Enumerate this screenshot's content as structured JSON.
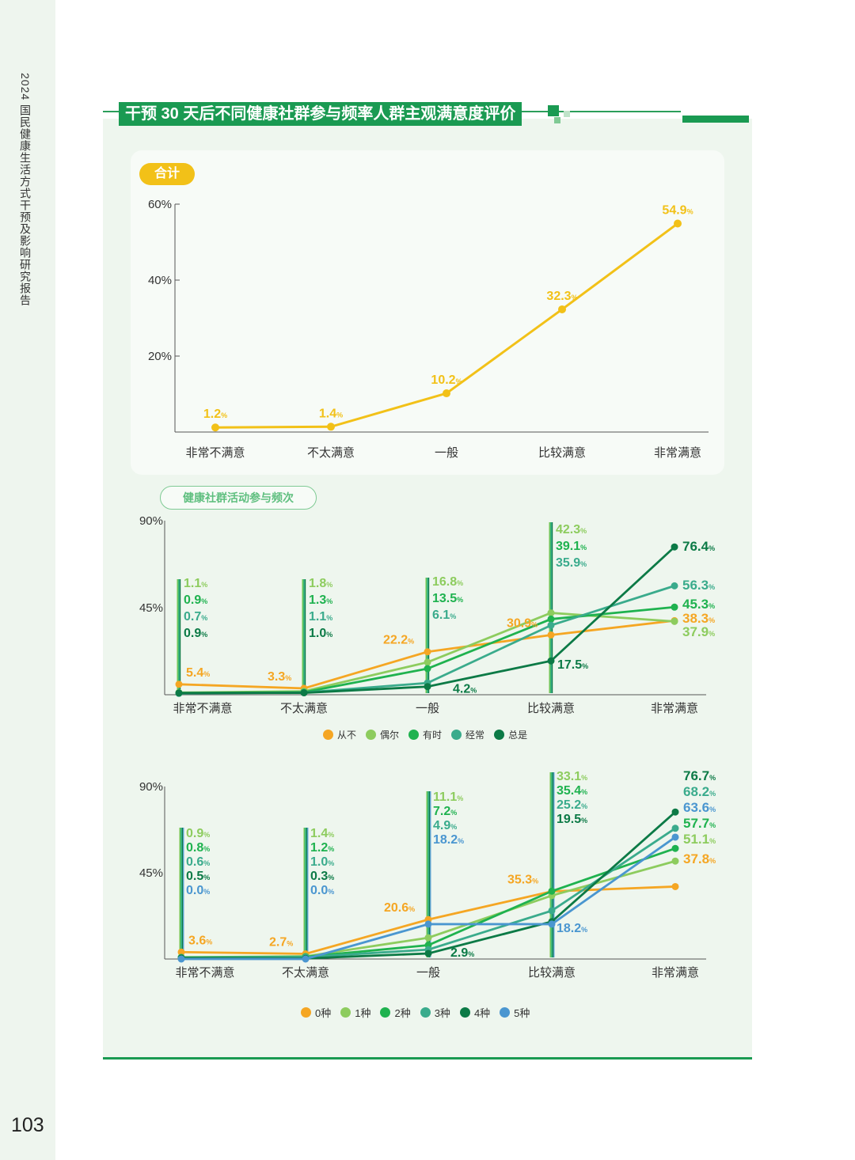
{
  "sidebar": {
    "title": "2024 国民健康生活方式干预及影响研究报告",
    "page_number": "103"
  },
  "header": {
    "title": "干预 30 天后不同健康社群参与频率人群主观满意度评价"
  },
  "colors": {
    "accent": "#1a9a52",
    "yellow": "#f2c118",
    "bg_panel": "#eef6ee"
  },
  "chart_data": [
    {
      "type": "line",
      "badge": "合计",
      "categories": [
        "非常不满意",
        "不太满意",
        "一般",
        "比较满意",
        "非常满意"
      ],
      "ylim": [
        0,
        60
      ],
      "yticks": [
        "20%",
        "40%",
        "60%"
      ],
      "series": [
        {
          "values": [
            1.2,
            1.4,
            10.2,
            32.3,
            54.9
          ],
          "color": "#f2c118",
          "labels": [
            "1.2",
            "1.4",
            "10.2",
            "32.3",
            "54.9"
          ]
        }
      ]
    },
    {
      "type": "line",
      "subtitle": "健康社群活动参与频次",
      "categories": [
        "非常不满意",
        "不太满意",
        "一般",
        "比较满意",
        "非常满意"
      ],
      "ylim": [
        0,
        90
      ],
      "yticks": [
        "45%",
        "90%"
      ],
      "series": [
        {
          "name": "从不",
          "color": "#f5a623",
          "values": [
            5.4,
            3.3,
            22.2,
            30.9,
            38.3
          ]
        },
        {
          "name": "偶尔",
          "color": "#8dcc5e",
          "values": [
            1.1,
            1.8,
            16.8,
            42.3,
            37.9
          ]
        },
        {
          "name": "有时",
          "color": "#1fb24f",
          "values": [
            0.9,
            1.3,
            13.5,
            39.1,
            45.3
          ]
        },
        {
          "name": "经常",
          "color": "#3aab8c",
          "values": [
            0.7,
            1.1,
            6.1,
            35.9,
            56.3
          ]
        },
        {
          "name": "总是",
          "color": "#0c7a46",
          "values": [
            0.9,
            1.0,
            4.2,
            17.5,
            76.4
          ]
        }
      ]
    },
    {
      "type": "line",
      "categories": [
        "非常不满意",
        "不太满意",
        "一般",
        "比较满意",
        "非常满意"
      ],
      "ylim": [
        0,
        90
      ],
      "yticks": [
        "45%",
        "90%"
      ],
      "series": [
        {
          "name": "0种",
          "color": "#f5a623",
          "values": [
            3.6,
            2.7,
            20.6,
            35.3,
            37.8
          ]
        },
        {
          "name": "1种",
          "color": "#8dcc5e",
          "values": [
            0.9,
            1.4,
            11.1,
            33.1,
            51.1
          ]
        },
        {
          "name": "2种",
          "color": "#1fb24f",
          "values": [
            0.8,
            1.2,
            7.2,
            35.4,
            57.7
          ]
        },
        {
          "name": "3种",
          "color": "#3aab8c",
          "values": [
            0.6,
            1.0,
            4.9,
            25.2,
            68.2
          ]
        },
        {
          "name": "4种",
          "color": "#0c7a46",
          "values": [
            0.5,
            0.3,
            2.9,
            19.5,
            76.7
          ]
        },
        {
          "name": "5种",
          "color": "#4a96d0",
          "values": [
            0.0,
            0.0,
            18.2,
            18.2,
            63.6
          ]
        }
      ]
    }
  ]
}
